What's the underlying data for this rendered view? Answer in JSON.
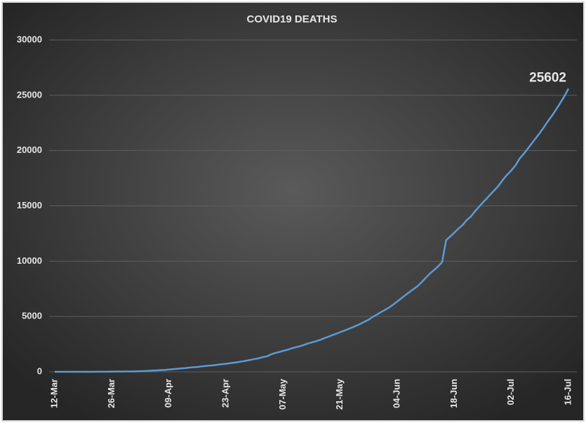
{
  "chart_data": {
    "type": "line",
    "title": "COVID19 DEATHS",
    "categories": [
      "12-Mar",
      null,
      null,
      null,
      null,
      null,
      null,
      null,
      null,
      null,
      null,
      null,
      null,
      null,
      "26-Mar",
      null,
      null,
      null,
      null,
      null,
      null,
      null,
      null,
      null,
      null,
      null,
      null,
      null,
      "09-Apr",
      null,
      null,
      null,
      null,
      null,
      null,
      null,
      null,
      null,
      null,
      null,
      null,
      null,
      "23-Apr",
      null,
      null,
      null,
      null,
      null,
      null,
      null,
      null,
      null,
      null,
      null,
      null,
      null,
      "07-May",
      null,
      null,
      null,
      null,
      null,
      null,
      null,
      null,
      null,
      null,
      null,
      null,
      null,
      "21-May",
      null,
      null,
      null,
      null,
      null,
      null,
      null,
      null,
      null,
      null,
      null,
      null,
      null,
      "04-Jun",
      null,
      null,
      null,
      null,
      null,
      null,
      null,
      null,
      null,
      null,
      null,
      null,
      null,
      "18-Jun",
      null,
      null,
      null,
      null,
      null,
      null,
      null,
      null,
      null,
      null,
      null,
      null,
      null,
      "02-Jul",
      null,
      null,
      null,
      null,
      null,
      null,
      null,
      null,
      null,
      null,
      null,
      null,
      null,
      "16-Jul"
    ],
    "series": [
      {
        "name": "Deaths",
        "color": "#5b9bd5",
        "values": [
          1,
          2,
          2,
          2,
          2,
          3,
          3,
          4,
          4,
          4,
          7,
          9,
          10,
          11,
          16,
          20,
          24,
          27,
          32,
          35,
          41,
          53,
          62,
          83,
          109,
          124,
          149,
          169,
          206,
          239,
          273,
          308,
          331,
          377,
          414,
          437,
          488,
          521,
          559,
          590,
          640,
          686,
          721,
          780,
          826,
          881,
          939,
          1008,
          1076,
          1154,
          1223,
          1323,
          1391,
          1566,
          1694,
          1783,
          1889,
          1981,
          2109,
          2206,
          2293,
          2415,
          2549,
          2649,
          2753,
          2871,
          3025,
          3156,
          3302,
          3434,
          3583,
          3720,
          3867,
          4021,
          4167,
          4337,
          4531,
          4706,
          4971,
          5164,
          5394,
          5598,
          5815,
          6075,
          6348,
          6642,
          6929,
          7207,
          7473,
          7745,
          8102,
          8498,
          8884,
          9195,
          9520,
          9900,
          11903,
          12237,
          12573,
          12948,
          13254,
          13699,
          14011,
          14476,
          14894,
          15301,
          15685,
          16095,
          16475,
          16893,
          17400,
          17834,
          18213,
          18655,
          19268,
          19693,
          20160,
          20642,
          21129,
          21604,
          22123,
          22674,
          23174,
          23727,
          24309,
          24915,
          25602
        ]
      }
    ],
    "ylim": [
      0,
      30000
    ],
    "yticks": [
      0,
      5000,
      10000,
      15000,
      20000,
      25000,
      30000
    ],
    "grid": true,
    "label_last": true
  }
}
